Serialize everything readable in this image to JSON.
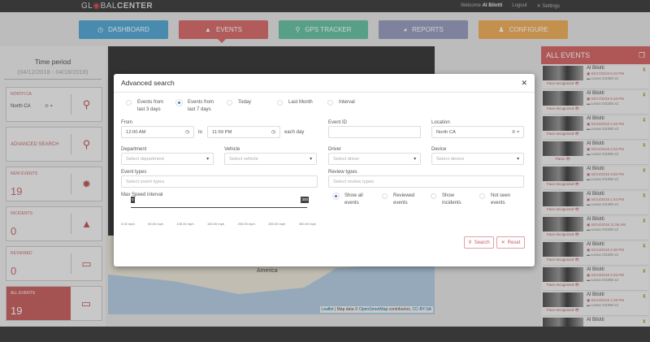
{
  "topbar": {
    "logo_pre": "GL",
    "logo_mid": "BAL",
    "logo_bold": "CENTER",
    "welcome": "Welcome",
    "user": "Al Bilotti",
    "logout": "Logout",
    "settings": "Settings"
  },
  "nav": [
    {
      "label": "DASHBOARD",
      "color": "#5aaad6",
      "icon": "dashboard-icon"
    },
    {
      "label": "EVENTS",
      "color": "#d96f6f",
      "icon": "warning-icon"
    },
    {
      "label": "GPS TRACKER",
      "color": "#6cc3a6",
      "icon": "map-pin-icon"
    },
    {
      "label": "REPORTS",
      "color": "#9a9fc0",
      "icon": "pie-chart-icon"
    },
    {
      "label": "CONFIGURE",
      "color": "#f0b060",
      "icon": "user-config-icon"
    }
  ],
  "left": {
    "time_title": "Time period",
    "time_range": "(04/12/2018 - 04/18/2018)",
    "location": {
      "label": "NORTH CA",
      "value": "North CA"
    },
    "advanced": "ADVANCED SEARCH",
    "new_events": {
      "label": "NEW EVENTS",
      "value": "19"
    },
    "incidents": {
      "label": "INCIDENTS",
      "value": "0"
    },
    "reviewed": {
      "label": "REVIEWED",
      "value": "0"
    },
    "all_events": {
      "label": "ALL EVENTS",
      "value": "19"
    }
  },
  "map": {
    "label": "America",
    "attr_leaflet": "Leaflet",
    "attr_text": " | Map data © ",
    "attr_osm": "OpenStreetMap",
    "attr_contrib": " contributors, ",
    "attr_cc": "CC-BY-SA"
  },
  "right": {
    "title": "ALL EVENTS",
    "events": [
      {
        "name": "Al Bilotti",
        "date": "04/17/2018 5:20 PM",
        "vehicle": "Lexus GS300 x2",
        "tag": "Face recognized"
      },
      {
        "name": "Al Bilotti",
        "date": "04/17/2018 5:16 PM",
        "vehicle": "Lexus GS300 x2",
        "tag": "Face recognized"
      },
      {
        "name": "Al Bilotti",
        "date": "04/15/2018 1:46 PM",
        "vehicle": "Lexus GS300 x2",
        "tag": "Face recognized"
      },
      {
        "name": "Al Bilotti",
        "date": "04/14/2018 2:34 PM",
        "vehicle": "Lexus GS300 x2",
        "tag": "Panic"
      },
      {
        "name": "Al Bilotti",
        "date": "04/14/2018 3:20 PM",
        "vehicle": "Lexus GS300 x2",
        "tag": "Face recognized"
      },
      {
        "name": "Al Bilotti",
        "date": "04/14/2018 1:44 PM",
        "vehicle": "Lexus GS300 x2",
        "tag": "Face recognized"
      },
      {
        "name": "Al Bilotti",
        "date": "04/14/2018 11:58 AM",
        "vehicle": "Lexus GS300 x2",
        "tag": "Face recognized"
      },
      {
        "name": "Al Bilotti",
        "date": "04/13/2018 2:30 PM",
        "vehicle": "Lexus GS300 x2",
        "tag": "Face recognized"
      },
      {
        "name": "Al Bilotti",
        "date": "04/13/2018 2:26 PM",
        "vehicle": "Lexus GS300 x2",
        "tag": "Face recognized"
      },
      {
        "name": "Al Bilotti",
        "date": "04/13/2018 1:28 PM",
        "vehicle": "Lexus GS300 x2",
        "tag": "Face recognized"
      },
      {
        "name": "Al Bilotti",
        "date": "",
        "vehicle": "",
        "tag": ""
      }
    ]
  },
  "modal": {
    "title": "Advanced search",
    "periods": [
      {
        "l1": "Events from",
        "l2": "last 3 days",
        "on": false
      },
      {
        "l1": "Events from",
        "l2": "last 7 days",
        "on": true
      },
      {
        "l1": "Today",
        "l2": "",
        "on": false
      },
      {
        "l1": "Last Month",
        "l2": "",
        "on": false
      },
      {
        "l1": "Interval",
        "l2": "",
        "on": false
      }
    ],
    "from_label": "From",
    "from": "12:00 AM",
    "to_label": "to",
    "to": "11:59 PM",
    "each_day": "each day",
    "event_id_label": "Event ID",
    "event_id": "",
    "location_label": "Location",
    "location": "North CA",
    "department_label": "Department",
    "department_ph": "Select department",
    "vehicle_label": "Vehicle",
    "vehicle_ph": "Select vehicle",
    "driver_label": "Driver",
    "driver_ph": "Select driver",
    "device_label": "Device",
    "device_ph": "Select device",
    "event_types_label": "Event types",
    "event_types_ph": "Select event types",
    "review_types_label": "Review types",
    "review_types_ph": "Select review types",
    "speed_label": "Max Speed interval",
    "speed_min": "0",
    "speed_max": "300",
    "speed_ticks": [
      "0.00 mph",
      "50.00 mph",
      "100.00 mph",
      "150.00 mph",
      "200.00 mph",
      "250.00 mph",
      "300.00 mph"
    ],
    "review_opts": [
      {
        "l1": "Show all",
        "l2": "events",
        "on": true
      },
      {
        "l1": "Reviewed",
        "l2": "events",
        "on": false
      },
      {
        "l1": "Show",
        "l2": "incidents",
        "on": false
      },
      {
        "l1": "Not seen",
        "l2": "events",
        "on": false
      }
    ],
    "search": "Search",
    "reset": "Reset"
  }
}
